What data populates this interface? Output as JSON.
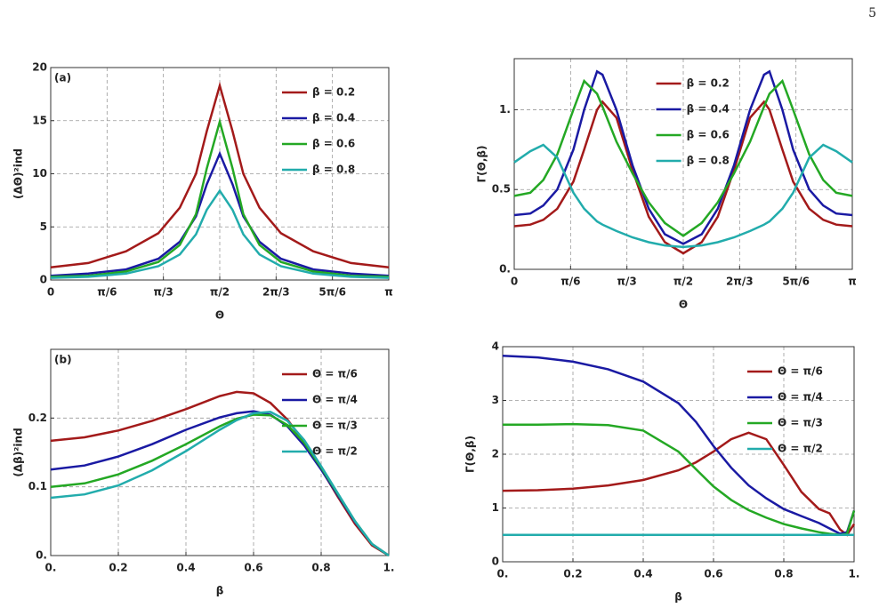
{
  "page_number": "5",
  "chart_data": [
    {
      "type": "line",
      "panel_label": "(a)",
      "x_label": "Θ",
      "y_label": "(ΔΘ)²ind",
      "x": [
        0,
        0.35,
        0.7,
        1.0,
        1.2,
        1.35,
        1.45,
        1.5708,
        1.69,
        1.79,
        1.94,
        2.14,
        2.44,
        2.79,
        3.1416
      ],
      "xlim": [
        0,
        3.1416
      ],
      "xticks": [
        {
          "value": 0,
          "label": "0"
        },
        {
          "value": 0.5236,
          "label": "π/6"
        },
        {
          "value": 1.0472,
          "label": "π/3"
        },
        {
          "value": 1.5708,
          "label": "π/2"
        },
        {
          "value": 2.0944,
          "label": "2π/3"
        },
        {
          "value": 2.618,
          "label": "5π/6"
        },
        {
          "value": 3.1416,
          "label": "π"
        }
      ],
      "ylim": [
        0,
        20
      ],
      "yticks": [
        0,
        5,
        10,
        15,
        20
      ],
      "grid": true,
      "legend_position": "upper right",
      "series": [
        {
          "name": "β = 0.2",
          "color": "#a31a1a",
          "values": [
            1.2,
            1.6,
            2.7,
            4.4,
            6.8,
            10.0,
            14.0,
            18.3,
            14.0,
            10.0,
            6.8,
            4.4,
            2.7,
            1.6,
            1.2
          ]
        },
        {
          "name": "β = 0.4",
          "color": "#1a1aa3",
          "values": [
            0.4,
            0.6,
            1.0,
            2.0,
            3.6,
            6.0,
            9.0,
            11.9,
            9.0,
            6.0,
            3.6,
            2.0,
            1.0,
            0.6,
            0.4
          ]
        },
        {
          "name": "β = 0.6",
          "color": "#24a824",
          "values": [
            0.3,
            0.4,
            0.8,
            1.7,
            3.3,
            6.2,
            10.5,
            14.9,
            10.5,
            6.2,
            3.3,
            1.7,
            0.8,
            0.4,
            0.3
          ]
        },
        {
          "name": "β = 0.8",
          "color": "#22acac",
          "values": [
            0.2,
            0.3,
            0.6,
            1.3,
            2.4,
            4.3,
            6.6,
            8.4,
            6.6,
            4.3,
            2.4,
            1.3,
            0.6,
            0.3,
            0.2
          ]
        }
      ]
    },
    {
      "type": "line",
      "x_label": "Θ",
      "y_label": "Γ(Θ,β)",
      "x": [
        0,
        0.15,
        0.27,
        0.4,
        0.55,
        0.65,
        0.77,
        0.82,
        0.95,
        1.1,
        1.25,
        1.4,
        1.5708,
        1.7416,
        1.8916,
        2.0416,
        2.1916,
        2.3216,
        2.3716,
        2.4916,
        2.5916,
        2.7416,
        2.8716,
        2.9916,
        3.1416
      ],
      "xlim": [
        0,
        3.1416
      ],
      "xticks": [
        {
          "value": 0,
          "label": "0"
        },
        {
          "value": 0.5236,
          "label": "π/6"
        },
        {
          "value": 1.0472,
          "label": "π/3"
        },
        {
          "value": 1.5708,
          "label": "π/2"
        },
        {
          "value": 2.0944,
          "label": "2π/3"
        },
        {
          "value": 2.618,
          "label": "5π/6"
        },
        {
          "value": 3.1416,
          "label": "π"
        }
      ],
      "ylim": [
        0,
        1.32
      ],
      "yticks": [
        {
          "value": 0,
          "label": "0."
        },
        0.5,
        {
          "value": 1,
          "label": "1."
        }
      ],
      "grid": true,
      "legend_position": "upper center",
      "series": [
        {
          "name": "β = 0.2",
          "color": "#a31a1a",
          "values": [
            0.27,
            0.28,
            0.31,
            0.38,
            0.55,
            0.75,
            1.0,
            1.05,
            0.95,
            0.62,
            0.33,
            0.17,
            0.1,
            0.17,
            0.33,
            0.62,
            0.95,
            1.05,
            1.0,
            0.75,
            0.55,
            0.38,
            0.31,
            0.28,
            0.27
          ]
        },
        {
          "name": "β = 0.4",
          "color": "#1a1aa3",
          "values": [
            0.34,
            0.35,
            0.4,
            0.5,
            0.75,
            1.0,
            1.24,
            1.22,
            1.0,
            0.65,
            0.38,
            0.22,
            0.16,
            0.22,
            0.38,
            0.65,
            1.0,
            1.22,
            1.24,
            1.0,
            0.75,
            0.5,
            0.4,
            0.35,
            0.34
          ]
        },
        {
          "name": "β = 0.6",
          "color": "#24a824",
          "values": [
            0.46,
            0.48,
            0.56,
            0.72,
            1.0,
            1.18,
            1.1,
            1.02,
            0.8,
            0.6,
            0.42,
            0.29,
            0.21,
            0.29,
            0.42,
            0.6,
            0.8,
            1.02,
            1.1,
            1.18,
            1.0,
            0.72,
            0.56,
            0.48,
            0.46
          ]
        },
        {
          "name": "β = 0.8",
          "color": "#22acac",
          "values": [
            0.67,
            0.74,
            0.78,
            0.7,
            0.48,
            0.38,
            0.3,
            0.28,
            0.24,
            0.2,
            0.17,
            0.15,
            0.14,
            0.15,
            0.17,
            0.2,
            0.24,
            0.28,
            0.3,
            0.38,
            0.48,
            0.7,
            0.78,
            0.74,
            0.67
          ]
        }
      ]
    },
    {
      "type": "line",
      "panel_label": "(b)",
      "x_label": "β",
      "y_label": "(Δβ)²ind",
      "x": [
        0,
        0.1,
        0.2,
        0.3,
        0.4,
        0.5,
        0.55,
        0.6,
        0.65,
        0.7,
        0.75,
        0.8,
        0.85,
        0.9,
        0.95,
        1
      ],
      "xlim": [
        0,
        1
      ],
      "xticks": [
        {
          "value": 0,
          "label": "0."
        },
        0.2,
        0.4,
        0.6,
        0.8,
        {
          "value": 1,
          "label": "1."
        }
      ],
      "ylim": [
        0,
        0.3
      ],
      "yticks": [
        {
          "value": 0,
          "label": "0."
        },
        0.1,
        0.2
      ],
      "grid": true,
      "legend_position": "upper right",
      "series": [
        {
          "name": "Θ = π/6",
          "color": "#a31a1a",
          "values": [
            0.167,
            0.172,
            0.182,
            0.196,
            0.213,
            0.232,
            0.238,
            0.236,
            0.222,
            0.198,
            0.165,
            0.126,
            0.085,
            0.046,
            0.015,
            0
          ]
        },
        {
          "name": "Θ = π/4",
          "color": "#1a1aa3",
          "values": [
            0.125,
            0.131,
            0.144,
            0.162,
            0.183,
            0.201,
            0.207,
            0.21,
            0.205,
            0.188,
            0.16,
            0.125,
            0.087,
            0.049,
            0.017,
            0
          ]
        },
        {
          "name": "Θ = π/3",
          "color": "#24a824",
          "values": [
            0.1,
            0.105,
            0.118,
            0.138,
            0.162,
            0.188,
            0.199,
            0.205,
            0.204,
            0.19,
            0.164,
            0.128,
            0.089,
            0.05,
            0.017,
            0
          ]
        },
        {
          "name": "Θ = π/2",
          "color": "#22acac",
          "values": [
            0.084,
            0.089,
            0.102,
            0.124,
            0.152,
            0.183,
            0.197,
            0.207,
            0.209,
            0.196,
            0.168,
            0.13,
            0.09,
            0.05,
            0.017,
            0
          ]
        }
      ]
    },
    {
      "type": "line",
      "x_label": "β",
      "y_label": "Γ(Θ,β)",
      "x": [
        0,
        0.1,
        0.2,
        0.3,
        0.4,
        0.5,
        0.55,
        0.6,
        0.65,
        0.7,
        0.75,
        0.8,
        0.85,
        0.9,
        0.93,
        0.96,
        0.98,
        1
      ],
      "xlim": [
        0,
        1
      ],
      "xticks": [
        {
          "value": 0,
          "label": "0."
        },
        0.2,
        0.4,
        0.6,
        0.8,
        {
          "value": 1,
          "label": "1."
        }
      ],
      "ylim": [
        0,
        4
      ],
      "yticks": [
        0,
        1,
        2,
        3,
        4
      ],
      "grid": true,
      "legend_position": "upper right",
      "series": [
        {
          "name": "Θ = π/6",
          "color": "#a31a1a",
          "values": [
            1.32,
            1.33,
            1.36,
            1.42,
            1.52,
            1.7,
            1.85,
            2.05,
            2.28,
            2.4,
            2.28,
            1.8,
            1.3,
            0.98,
            0.9,
            0.6,
            0.5,
            0.7
          ]
        },
        {
          "name": "Θ = π/4",
          "color": "#1a1aa3",
          "values": [
            3.83,
            3.8,
            3.72,
            3.58,
            3.35,
            2.95,
            2.6,
            2.15,
            1.75,
            1.42,
            1.18,
            0.98,
            0.85,
            0.72,
            0.62,
            0.52,
            0.55,
            0.95
          ]
        },
        {
          "name": "Θ = π/3",
          "color": "#24a824",
          "values": [
            2.55,
            2.55,
            2.56,
            2.54,
            2.44,
            2.05,
            1.72,
            1.4,
            1.15,
            0.96,
            0.82,
            0.7,
            0.62,
            0.55,
            0.52,
            0.5,
            0.52,
            0.95
          ]
        },
        {
          "name": "Θ = π/2",
          "color": "#22acac",
          "values": [
            0.5,
            0.5,
            0.5,
            0.5,
            0.5,
            0.5,
            0.5,
            0.5,
            0.5,
            0.5,
            0.5,
            0.5,
            0.5,
            0.5,
            0.5,
            0.5,
            0.5,
            0.5
          ]
        }
      ]
    }
  ]
}
